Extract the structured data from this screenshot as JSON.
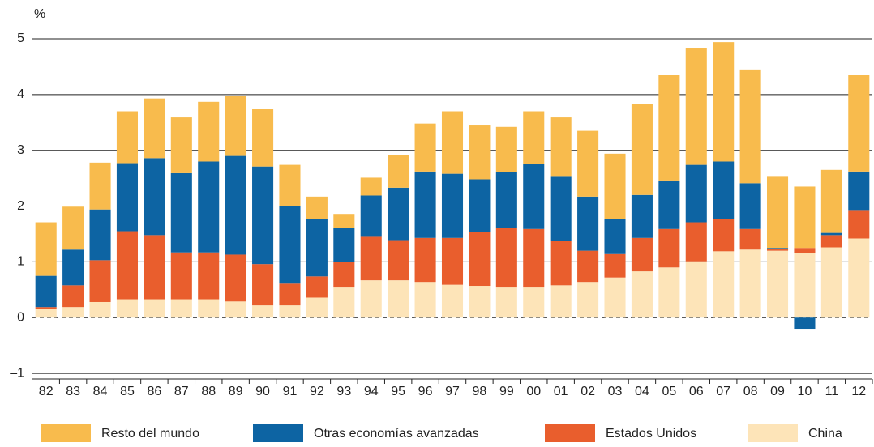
{
  "chart_data": {
    "type": "stacked_bar",
    "y_label": "%",
    "categories": [
      "82",
      "83",
      "84",
      "85",
      "86",
      "87",
      "88",
      "89",
      "90",
      "91",
      "92",
      "93",
      "94",
      "95",
      "96",
      "97",
      "98",
      "99",
      "00",
      "01",
      "02",
      "03",
      "04",
      "05",
      "06",
      "07",
      "08",
      "09",
      "10",
      "11",
      "12"
    ],
    "series": [
      {
        "name": "Resto del mundo",
        "color": "#f8bb4d",
        "values": [
          0.96,
          0.77,
          0.84,
          0.93,
          1.07,
          1.0,
          1.07,
          1.07,
          1.04,
          0.74,
          0.4,
          0.25,
          0.32,
          0.58,
          0.86,
          1.12,
          0.98,
          0.81,
          0.95,
          1.05,
          1.18,
          1.17,
          1.63,
          1.89,
          2.1,
          2.14,
          2.04,
          1.29,
          1.1,
          1.13,
          1.74
        ]
      },
      {
        "name": "Otras economías avanzadas",
        "color": "#0d64a3",
        "values": [
          0.56,
          0.64,
          0.91,
          1.22,
          1.38,
          1.42,
          1.63,
          1.77,
          1.75,
          1.39,
          1.03,
          0.61,
          0.74,
          0.94,
          1.19,
          1.15,
          0.94,
          1.0,
          1.16,
          1.16,
          0.97,
          0.63,
          0.77,
          0.87,
          1.03,
          1.03,
          0.82,
          0.02,
          -0.2,
          0.04,
          0.69
        ]
      },
      {
        "name": "Estados Unidos",
        "color": "#e95e2d",
        "values": [
          0.04,
          0.39,
          0.75,
          1.22,
          1.15,
          0.84,
          0.84,
          0.84,
          0.74,
          0.39,
          0.38,
          0.46,
          0.78,
          0.72,
          0.79,
          0.84,
          0.97,
          1.07,
          1.05,
          0.8,
          0.56,
          0.42,
          0.6,
          0.69,
          0.7,
          0.58,
          0.37,
          0.03,
          0.09,
          0.22,
          0.51
        ]
      },
      {
        "name": "China",
        "color": "#fde4b8",
        "values": [
          0.15,
          0.19,
          0.28,
          0.33,
          0.33,
          0.33,
          0.33,
          0.29,
          0.22,
          0.22,
          0.36,
          0.54,
          0.67,
          0.67,
          0.64,
          0.59,
          0.57,
          0.54,
          0.54,
          0.58,
          0.64,
          0.72,
          0.83,
          0.9,
          1.01,
          1.19,
          1.22,
          1.2,
          1.16,
          1.26,
          1.42
        ]
      }
    ],
    "ylim": [
      -1.1,
      5
    ],
    "yticks": [
      {
        "value": -1,
        "label": "–1"
      },
      0,
      1,
      2,
      3,
      4,
      5
    ],
    "grid": true
  }
}
